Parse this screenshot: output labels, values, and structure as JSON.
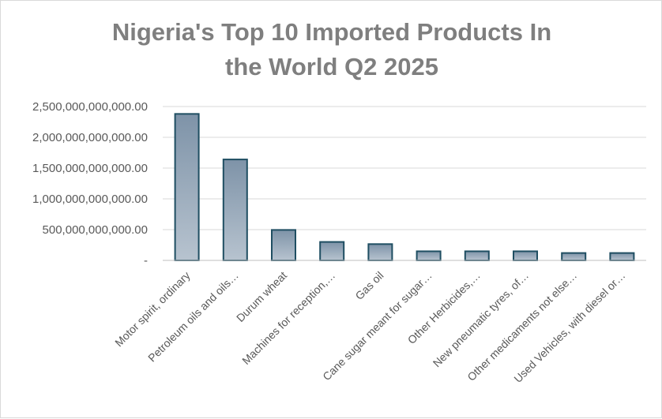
{
  "chart_data": {
    "type": "bar",
    "title_lines": [
      "Nigeria's Top 10 Imported Products In",
      "the World Q2 2025"
    ],
    "xlabel": "",
    "ylabel": "",
    "ylim": [
      0,
      2500000000000
    ],
    "y_ticks": [
      {
        "value": 0,
        "label": "-"
      },
      {
        "value": 500000000000,
        "label": "500,000,000,000.00"
      },
      {
        "value": 1000000000000,
        "label": "1,000,000,000,000.00"
      },
      {
        "value": 1500000000000,
        "label": "1,500,000,000,000.00"
      },
      {
        "value": 2000000000000,
        "label": "2,000,000,000,000.00"
      },
      {
        "value": 2500000000000,
        "label": "2,500,000,000,000.00"
      }
    ],
    "grid": true,
    "legend": "none",
    "categories": [
      "Motor spirit, ordinary",
      "Petroleum oils and oils…",
      "Durum wheat",
      "Machines for reception,…",
      "Gas oil",
      "Cane sugar meant for sugar…",
      "Other Herbicides,…",
      "New pneumatic tyres, of…",
      "Other medicaments not else…",
      "Used Vehicles, with diesel or…"
    ],
    "values": [
      2380000000000,
      1640000000000,
      495000000000,
      300000000000,
      265000000000,
      148000000000,
      148000000000,
      148000000000,
      120000000000,
      120000000000
    ],
    "colors": {
      "bar_top": "#7e93a8",
      "bar_bottom": "#b7c3cf",
      "bar_border": "#1f4e62",
      "grid": "#d9d9d9",
      "axis": "#bfbfbf"
    }
  }
}
